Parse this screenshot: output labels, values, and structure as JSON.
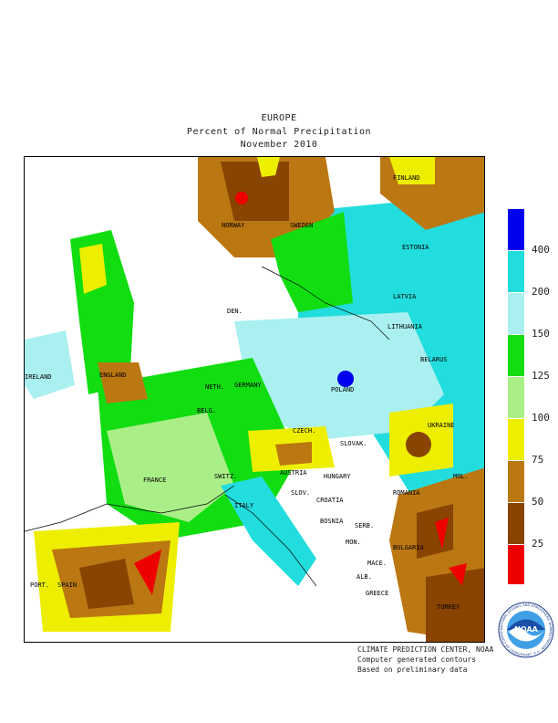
{
  "title": {
    "line1": "EUROPE",
    "line2": "Percent of Normal Precipitation",
    "line3": "November 2010"
  },
  "legend": {
    "ticks": [
      "400",
      "200",
      "150",
      "125",
      "100",
      "75",
      "50",
      "25"
    ],
    "colors": [
      "#0000ee",
      "#22dddd",
      "#aaf0f0",
      "#11dd11",
      "#aaee88",
      "#eeee00",
      "#bb7711",
      "#884400",
      "#ee0000"
    ]
  },
  "countries": {
    "finland": "FINLAND",
    "norway": "NORWAY",
    "sweden": "SWEDEN",
    "estonia": "ESTONIA",
    "latvia": "LATVIA",
    "lithuania": "LITHUANIA",
    "belarus": "BELARUS",
    "ireland": "IRELAND",
    "england": "ENGLAND",
    "denmark": "DEN.",
    "netherlands": "NETH.",
    "belgium": "BELG.",
    "germany": "GERMANY",
    "poland": "POLAND",
    "czech": "CZECH.",
    "slovakia": "SLOVAK.",
    "ukraine": "UKRAINE",
    "france": "FRANCE",
    "switzerland": "SWITZ.",
    "austria": "AUSTRIA",
    "hungary": "HUNGARY",
    "romania": "ROMANIA",
    "moldova": "MOL.",
    "slovenia": "SLOV.",
    "croatia": "CROATIA",
    "italy": "ITALY",
    "bosnia": "BOSNIA",
    "serbia": "SERB.",
    "montenegro": "MON.",
    "bulgaria": "BULGARIA",
    "macedonia": "MACE.",
    "albania": "ALB.",
    "greece": "GREECE",
    "turkey": "TURKEY",
    "portugal": "PORT.",
    "spain": "SPAIN"
  },
  "credits": {
    "line1": "CLIMATE PREDICTION CENTER, NOAA",
    "line2": "Computer generated contours",
    "line3": "Based on preliminary data"
  },
  "logo": {
    "text": "NOAA",
    "ring_text": "NATIONAL OCEANIC AND ATMOSPHERIC ADMINISTRATION · U.S. DEPARTMENT OF COMMERCE"
  }
}
